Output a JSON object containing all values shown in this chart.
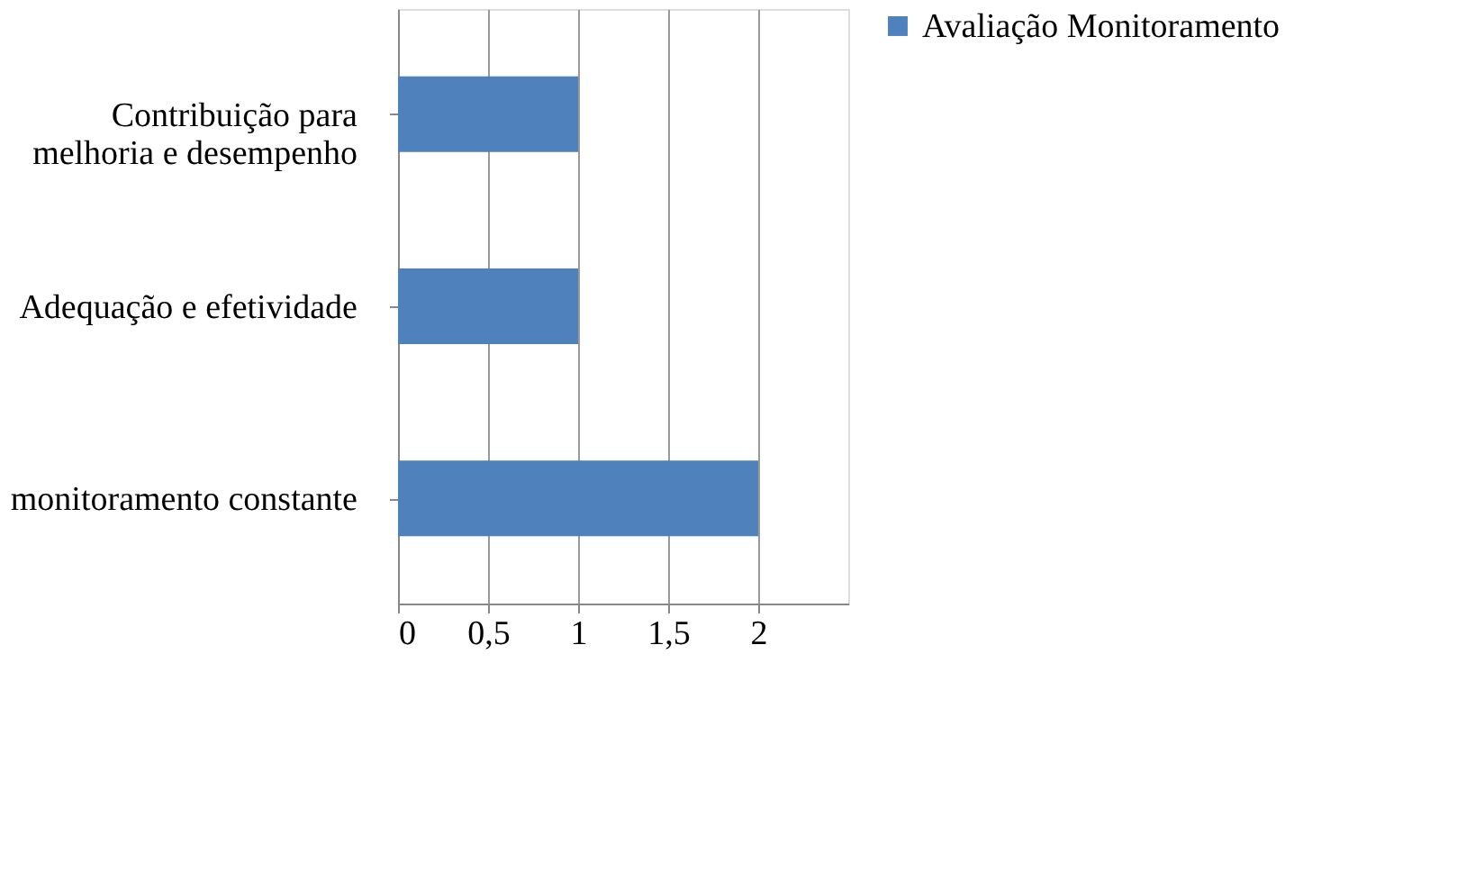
{
  "chart_data": {
    "type": "bar",
    "orientation": "horizontal",
    "categories": [
      "Contribuição para melhoria e desempenho",
      "Adequação e efetividade",
      "monitoramento constante"
    ],
    "series": [
      {
        "name": "Avaliação Monitoramento",
        "color": "#4f81bd",
        "values": [
          1,
          1,
          2
        ]
      }
    ],
    "xlim": [
      0,
      2.5
    ],
    "xticks": [
      0,
      {
        "value": 0.5,
        "label": "0,5"
      },
      1,
      {
        "value": 1.5,
        "label": "1,5"
      },
      2
    ],
    "grid": "x",
    "legend": "right"
  }
}
